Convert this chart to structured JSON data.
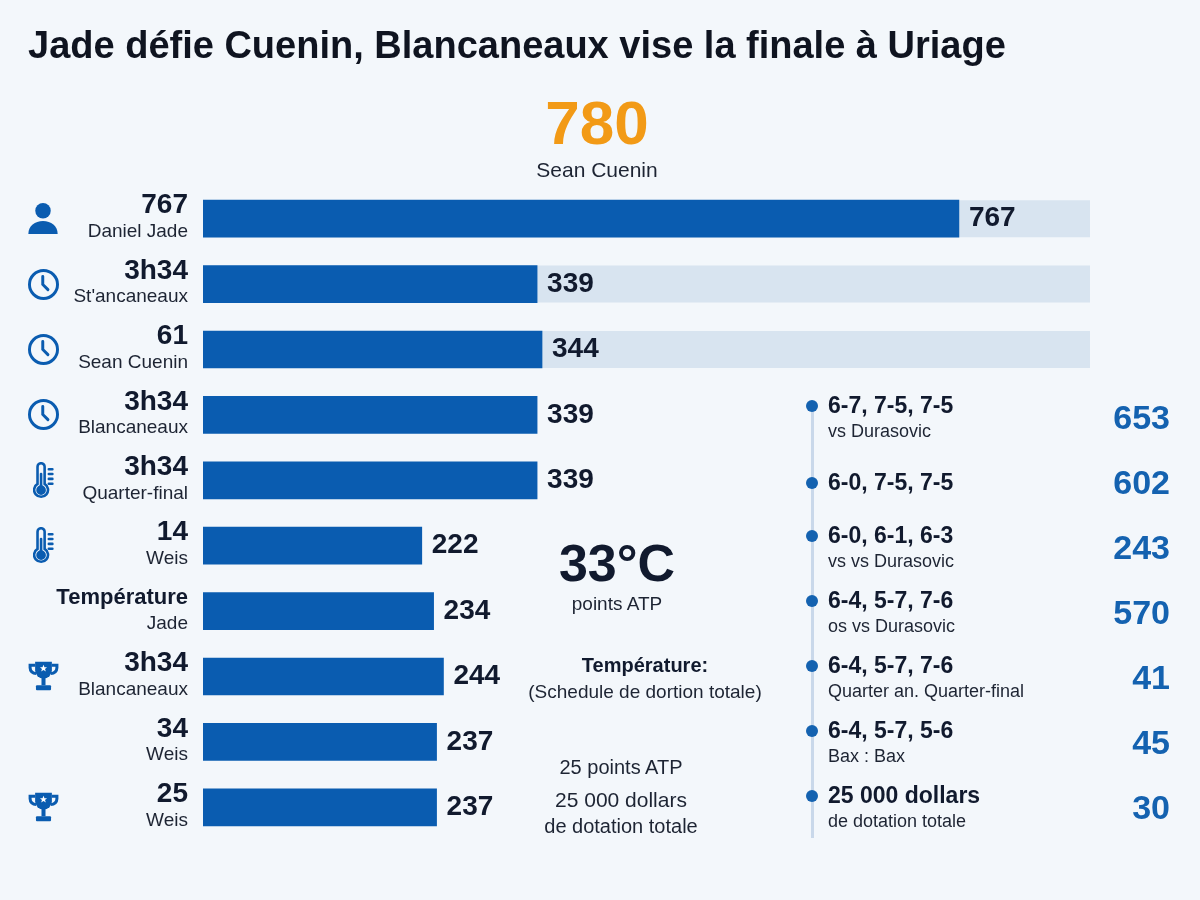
{
  "chart_data": [
    {
      "type": "bar",
      "orientation": "horizontal",
      "title": "Jade défie Cuenin, Blancaneaux vise la finale à Uriage",
      "categories": [
        "767\nDaniel Jade",
        "3h34\nSt'ancaneaux",
        "61\nSean Cuenin",
        "3h34\nBlancaneaux",
        "3h34\nQuarter-final",
        "14\nWeis",
        "Température\nJade",
        "3h34\nBlancaneaux",
        "34\nWeis",
        "25\nWeis"
      ],
      "values": [
        767,
        339,
        344,
        339,
        339,
        222,
        234,
        244,
        237,
        237
      ],
      "color": "#0a5cb0",
      "xlim": [
        0,
        900
      ],
      "data_labels": true,
      "tick_labels": "y",
      "annotations": [
        "780\nSean Cuenin",
        "33°C\npoints ATP",
        "Température:\n(Schedule de dortion totale)",
        "25 points ATP\n25 000 dollars\nde dotation totale"
      ]
    },
    {
      "type": "other",
      "categories": [
        "6-7, 7-5, 7-5\nvs Durasovic",
        "6-0, 7-5, 7-5",
        "6-0, 6-1, 6-3\nvs vs Durasovic",
        "6-4, 5-7, 7-6\nos vs Durasovic",
        "6-4, 5-7, 7-6\nQuarter an. Quarter-final",
        "6-4, 5-7, 5-6\nBax : Bax",
        "25 000 dollars\nde dotation totale"
      ],
      "values": [
        653,
        602,
        243,
        570,
        41,
        45,
        30
      ],
      "color": "#1462b0",
      "data_labels": true
    }
  ]
}
